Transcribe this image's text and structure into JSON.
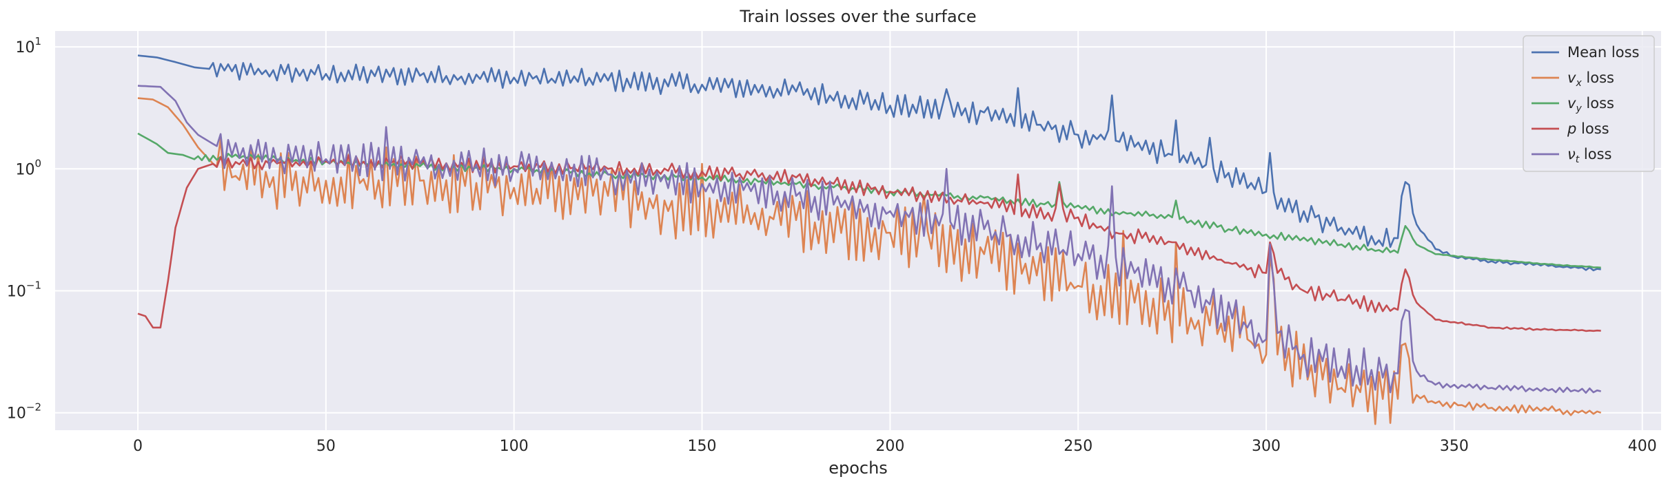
{
  "chart_data": {
    "type": "line",
    "title": "Train losses over the surface",
    "xlabel": "epochs",
    "ylabel": "",
    "x_range": [
      0,
      389
    ],
    "xlim": [
      -22,
      405
    ],
    "ylim": [
      0.0072,
      13.5
    ],
    "yscale": "log",
    "grid": true,
    "legend_position": "top-right",
    "xticks": [
      0,
      50,
      100,
      150,
      200,
      250,
      300,
      350,
      400
    ],
    "yticks": [
      {
        "value": 0.01,
        "base": "10",
        "exp": "−2"
      },
      {
        "value": 0.1,
        "base": "10",
        "exp": "−1"
      },
      {
        "value": 1,
        "base": "10",
        "exp": "0"
      },
      {
        "value": 10,
        "base": "10",
        "exp": "1"
      }
    ],
    "series": [
      {
        "name": "Mean loss",
        "label_parts": [
          {
            "t": "Mean loss",
            "style": "normal"
          }
        ],
        "color": "#4c72b0",
        "anchors": [
          [
            0,
            8.5
          ],
          [
            5,
            8.2
          ],
          [
            10,
            7.5
          ],
          [
            15,
            6.8
          ],
          [
            25,
            6.3
          ],
          [
            50,
            6.0
          ],
          [
            75,
            5.8
          ],
          [
            100,
            5.6
          ],
          [
            125,
            5.3
          ],
          [
            150,
            4.9
          ],
          [
            175,
            4.3
          ],
          [
            190,
            3.8
          ],
          [
            200,
            3.3
          ],
          [
            215,
            3.0
          ],
          [
            225,
            2.9
          ],
          [
            240,
            2.3
          ],
          [
            250,
            1.9
          ],
          [
            260,
            1.7
          ],
          [
            275,
            1.3
          ],
          [
            285,
            1.0
          ],
          [
            300,
            0.65
          ],
          [
            310,
            0.45
          ],
          [
            320,
            0.33
          ],
          [
            330,
            0.26
          ],
          [
            335,
            0.27
          ],
          [
            337,
            0.78
          ],
          [
            340,
            0.35
          ],
          [
            345,
            0.22
          ],
          [
            350,
            0.19
          ],
          [
            360,
            0.175
          ],
          [
            375,
            0.16
          ],
          [
            389,
            0.15
          ]
        ],
        "noise": 0.08,
        "noise_ramp": 0.5,
        "noise_start": 20,
        "spikes": [
          [
            215,
            4.5
          ],
          [
            234,
            4.6
          ],
          [
            259,
            4.0
          ],
          [
            276,
            2.5
          ],
          [
            285,
            1.8
          ],
          [
            301,
            1.35
          ]
        ]
      },
      {
        "name": "v_x loss",
        "label_parts": [
          {
            "t": "v",
            "style": "italic"
          },
          {
            "t": "x",
            "style": "sub"
          },
          {
            "t": " loss",
            "style": "normal"
          }
        ],
        "color": "#dd8452",
        "anchors": [
          [
            0,
            3.8
          ],
          [
            4,
            3.7
          ],
          [
            8,
            3.2
          ],
          [
            12,
            2.3
          ],
          [
            16,
            1.5
          ],
          [
            20,
            1.1
          ],
          [
            25,
            0.85
          ],
          [
            50,
            0.8
          ],
          [
            75,
            0.8
          ],
          [
            100,
            0.7
          ],
          [
            125,
            0.6
          ],
          [
            150,
            0.45
          ],
          [
            175,
            0.38
          ],
          [
            200,
            0.3
          ],
          [
            225,
            0.2
          ],
          [
            250,
            0.11
          ],
          [
            265,
            0.08
          ],
          [
            280,
            0.06
          ],
          [
            295,
            0.04
          ],
          [
            300,
            0.03
          ],
          [
            301,
            0.19
          ],
          [
            303,
            0.03
          ],
          [
            320,
            0.016
          ],
          [
            335,
            0.013
          ],
          [
            337,
            0.037
          ],
          [
            340,
            0.014
          ],
          [
            345,
            0.012
          ],
          [
            360,
            0.011
          ],
          [
            375,
            0.0105
          ],
          [
            389,
            0.01
          ]
        ],
        "noise": 0.25,
        "noise_ramp": 0.15,
        "noise_start": 22,
        "spikes": [
          [
            66,
            1.5
          ],
          [
            150,
            1.1
          ],
          [
            209,
            0.6
          ],
          [
            262,
            0.31
          ],
          [
            276,
            0.25
          ]
        ]
      },
      {
        "name": "v_y loss",
        "label_parts": [
          {
            "t": "v",
            "style": "italic"
          },
          {
            "t": "y",
            "style": "sub"
          },
          {
            "t": " loss",
            "style": "normal"
          }
        ],
        "color": "#55a868",
        "anchors": [
          [
            0,
            1.95
          ],
          [
            5,
            1.6
          ],
          [
            8,
            1.35
          ],
          [
            12,
            1.3
          ],
          [
            15,
            1.2
          ],
          [
            25,
            1.25
          ],
          [
            50,
            1.15
          ],
          [
            75,
            1.05
          ],
          [
            100,
            1.0
          ],
          [
            125,
            0.9
          ],
          [
            150,
            0.85
          ],
          [
            175,
            0.75
          ],
          [
            200,
            0.65
          ],
          [
            225,
            0.58
          ],
          [
            245,
            0.5
          ],
          [
            260,
            0.44
          ],
          [
            275,
            0.4
          ],
          [
            290,
            0.32
          ],
          [
            300,
            0.29
          ],
          [
            320,
            0.24
          ],
          [
            335,
            0.205
          ],
          [
            337,
            0.34
          ],
          [
            340,
            0.24
          ],
          [
            345,
            0.2
          ],
          [
            360,
            0.18
          ],
          [
            375,
            0.165
          ],
          [
            389,
            0.155
          ]
        ],
        "noise": 0.03,
        "noise_ramp": 0.05,
        "noise_start": 15,
        "spikes": [
          [
            245,
            0.78
          ],
          [
            276,
            0.55
          ]
        ]
      },
      {
        "name": "p loss",
        "label_parts": [
          {
            "t": "p",
            "style": "italic"
          },
          {
            "t": " loss",
            "style": "normal"
          }
        ],
        "color": "#c44e52",
        "anchors": [
          [
            0,
            0.065
          ],
          [
            2,
            0.062
          ],
          [
            4,
            0.05
          ],
          [
            6,
            0.05
          ],
          [
            8,
            0.12
          ],
          [
            10,
            0.33
          ],
          [
            13,
            0.7
          ],
          [
            16,
            1.0
          ],
          [
            20,
            1.1
          ],
          [
            50,
            1.15
          ],
          [
            75,
            1.1
          ],
          [
            100,
            1.05
          ],
          [
            125,
            1.0
          ],
          [
            150,
            0.95
          ],
          [
            175,
            0.85
          ],
          [
            200,
            0.65
          ],
          [
            225,
            0.52
          ],
          [
            250,
            0.4
          ],
          [
            260,
            0.3
          ],
          [
            275,
            0.25
          ],
          [
            290,
            0.17
          ],
          [
            300,
            0.14
          ],
          [
            301,
            0.25
          ],
          [
            303,
            0.14
          ],
          [
            310,
            0.1
          ],
          [
            320,
            0.085
          ],
          [
            335,
            0.07
          ],
          [
            337,
            0.15
          ],
          [
            340,
            0.08
          ],
          [
            345,
            0.058
          ],
          [
            360,
            0.05
          ],
          [
            375,
            0.048
          ],
          [
            389,
            0.047
          ]
        ],
        "noise": 0.06,
        "noise_ramp": 0.08,
        "noise_start": 20,
        "spikes": [
          [
            234,
            0.9
          ],
          [
            245,
            0.75
          ]
        ]
      },
      {
        "name": "v_t loss",
        "label_parts": [
          {
            "t": "ν",
            "style": "italic"
          },
          {
            "t": "t",
            "style": "sub"
          },
          {
            "t": " loss",
            "style": "normal"
          }
        ],
        "color": "#8172b3",
        "anchors": [
          [
            0,
            4.8
          ],
          [
            6,
            4.7
          ],
          [
            10,
            3.6
          ],
          [
            13,
            2.4
          ],
          [
            16,
            1.9
          ],
          [
            20,
            1.6
          ],
          [
            25,
            1.3
          ],
          [
            50,
            1.2
          ],
          [
            75,
            1.1
          ],
          [
            100,
            1.0
          ],
          [
            125,
            0.9
          ],
          [
            150,
            0.75
          ],
          [
            175,
            0.6
          ],
          [
            200,
            0.45
          ],
          [
            225,
            0.32
          ],
          [
            250,
            0.2
          ],
          [
            265,
            0.14
          ],
          [
            280,
            0.1
          ],
          [
            295,
            0.05
          ],
          [
            300,
            0.04
          ],
          [
            301,
            0.24
          ],
          [
            303,
            0.045
          ],
          [
            310,
            0.03
          ],
          [
            320,
            0.024
          ],
          [
            335,
            0.021
          ],
          [
            337,
            0.07
          ],
          [
            340,
            0.022
          ],
          [
            345,
            0.017
          ],
          [
            360,
            0.016
          ],
          [
            389,
            0.015
          ]
        ],
        "noise": 0.15,
        "noise_ramp": 0.25,
        "noise_start": 22,
        "spikes": [
          [
            66,
            2.2
          ],
          [
            215,
            1.0
          ],
          [
            259,
            0.72
          ]
        ]
      }
    ]
  }
}
